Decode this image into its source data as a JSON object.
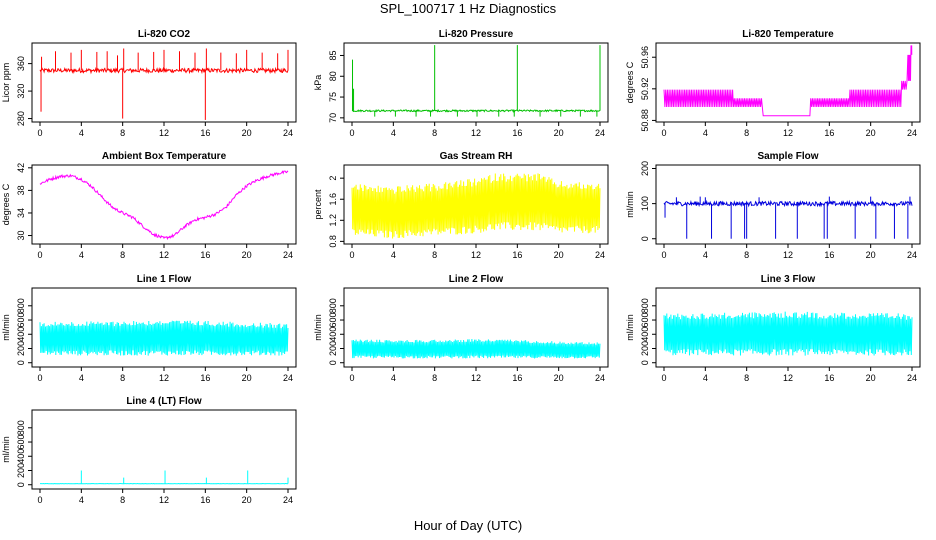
{
  "title": "SPL_100717  1 Hz Diagnostics",
  "x_axis_label": "Hour of Day (UTC)",
  "chart_data": [
    {
      "type": "line",
      "title": "Li-820 CO2",
      "ylabel": "Licor ppm",
      "color": "#ff0000",
      "xlim": [
        0,
        24
      ],
      "xticks": [
        0,
        4,
        8,
        12,
        16,
        20,
        24
      ],
      "ylim": [
        275,
        390
      ],
      "yticks": [
        280,
        320,
        360
      ],
      "baseline": 350,
      "noise": 3,
      "spikes": [
        {
          "x": 0.1,
          "y": 290
        },
        {
          "x": 0.15,
          "y": 370
        },
        {
          "x": 1.5,
          "y": 378
        },
        {
          "x": 3.0,
          "y": 376
        },
        {
          "x": 4.0,
          "y": 380
        },
        {
          "x": 5.5,
          "y": 377
        },
        {
          "x": 6.5,
          "y": 378
        },
        {
          "x": 7.5,
          "y": 372
        },
        {
          "x": 8.0,
          "y": 280
        },
        {
          "x": 8.1,
          "y": 382
        },
        {
          "x": 9.5,
          "y": 376
        },
        {
          "x": 11.0,
          "y": 377
        },
        {
          "x": 12.0,
          "y": 380
        },
        {
          "x": 13.5,
          "y": 378
        },
        {
          "x": 15.0,
          "y": 376
        },
        {
          "x": 16.0,
          "y": 278
        },
        {
          "x": 16.1,
          "y": 382
        },
        {
          "x": 17.5,
          "y": 376
        },
        {
          "x": 19.0,
          "y": 375
        },
        {
          "x": 20.0,
          "y": 380
        },
        {
          "x": 21.5,
          "y": 376
        },
        {
          "x": 23.0,
          "y": 375
        },
        {
          "x": 24.0,
          "y": 380
        }
      ]
    },
    {
      "type": "line",
      "title": "Li-820 Pressure",
      "ylabel": "kPa",
      "color": "#00c000",
      "xlim": [
        0,
        24
      ],
      "xticks": [
        0,
        4,
        8,
        12,
        16,
        20,
        24
      ],
      "ylim": [
        69,
        88
      ],
      "yticks": [
        70,
        75,
        80,
        85
      ],
      "baseline": 71.7,
      "noise": 0.2,
      "spikes": [
        {
          "x": 0.05,
          "y": 84
        },
        {
          "x": 0.15,
          "y": 77
        },
        {
          "x": 2.2,
          "y": 70.3
        },
        {
          "x": 4.2,
          "y": 70.3
        },
        {
          "x": 6.2,
          "y": 70.3
        },
        {
          "x": 7.6,
          "y": 70.3
        },
        {
          "x": 8.0,
          "y": 87.5
        },
        {
          "x": 10.2,
          "y": 70.3
        },
        {
          "x": 12.1,
          "y": 70.3
        },
        {
          "x": 14.2,
          "y": 70.3
        },
        {
          "x": 15.7,
          "y": 70.3
        },
        {
          "x": 16.0,
          "y": 87.5
        },
        {
          "x": 18.2,
          "y": 70.3
        },
        {
          "x": 20.2,
          "y": 70.3
        },
        {
          "x": 22.1,
          "y": 70.3
        },
        {
          "x": 23.7,
          "y": 70.3
        },
        {
          "x": 24.0,
          "y": 87.5
        }
      ]
    },
    {
      "type": "line",
      "title": "Li-820 Temperature",
      "ylabel": "degrees C",
      "color": "#ff00ff",
      "xlim": [
        0,
        24
      ],
      "xticks": [
        0,
        4,
        8,
        12,
        16,
        20,
        24
      ],
      "ylim": [
        50.878,
        50.978
      ],
      "yticks": [
        50.88,
        50.92,
        50.96
      ],
      "segments": [
        {
          "x0": 0.0,
          "x1": 6.8,
          "low": 50.897,
          "high": 50.919
        },
        {
          "x0": 6.8,
          "x1": 9.6,
          "low": 50.897,
          "high": 50.908
        },
        {
          "x0": 9.6,
          "x1": 14.2,
          "low": 50.886,
          "high": 50.886
        },
        {
          "x0": 14.2,
          "x1": 18.0,
          "low": 50.897,
          "high": 50.908
        },
        {
          "x0": 18.0,
          "x1": 23.0,
          "low": 50.897,
          "high": 50.919
        },
        {
          "x0": 23.0,
          "x1": 23.6,
          "low": 50.919,
          "high": 50.93
        },
        {
          "x0": 23.6,
          "x1": 23.9,
          "low": 50.93,
          "high": 50.963
        },
        {
          "x0": 23.9,
          "x1": 24.0,
          "low": 50.963,
          "high": 50.975
        }
      ]
    },
    {
      "type": "line",
      "title": "Ambient Box Temperature",
      "ylabel": "degrees C",
      "color": "#ff00ff",
      "xlim": [
        0,
        24
      ],
      "xticks": [
        0,
        4,
        8,
        12,
        16,
        20,
        24
      ],
      "ylim": [
        28.5,
        42.5
      ],
      "yticks": [
        30,
        34,
        38,
        42
      ],
      "noise": 0.25,
      "x": [
        0,
        1,
        2,
        3,
        4,
        5,
        6,
        7,
        8,
        9,
        10,
        11,
        12,
        13,
        14,
        15,
        16,
        17,
        18,
        19,
        20,
        21,
        22,
        23,
        24
      ],
      "y": [
        39.2,
        40.0,
        40.5,
        40.6,
        40.0,
        38.7,
        36.8,
        35.0,
        34.0,
        33.2,
        31.6,
        30.2,
        29.5,
        30.0,
        31.6,
        32.8,
        33.2,
        33.8,
        35.0,
        37.2,
        38.8,
        39.8,
        40.5,
        41.0,
        41.3
      ]
    },
    {
      "type": "line",
      "title": "Gas Stream RH",
      "ylabel": "percent",
      "color": "#ffff00",
      "xlim": [
        0,
        24
      ],
      "xticks": [
        0,
        4,
        8,
        12,
        16,
        20,
        24
      ],
      "ylim": [
        0.75,
        2.25
      ],
      "yticks": [
        0.8,
        1.2,
        1.6,
        2.0
      ],
      "band_x": [
        0,
        4,
        8,
        12,
        14,
        18,
        20,
        24
      ],
      "band_low": [
        0.9,
        0.85,
        0.9,
        0.95,
        1.0,
        1.0,
        0.95,
        0.95
      ],
      "band_high": [
        1.9,
        1.85,
        1.9,
        2.0,
        2.1,
        2.1,
        1.95,
        1.9
      ]
    },
    {
      "type": "line",
      "title": "Sample Flow",
      "ylabel": "ml/min",
      "color": "#0000dd",
      "xlim": [
        0,
        24
      ],
      "xticks": [
        0,
        4,
        8,
        12,
        16,
        20,
        24
      ],
      "ylim": [
        -15,
        210
      ],
      "yticks": [
        0,
        100,
        200
      ],
      "baseline": 100,
      "noise": 6,
      "spikes": [
        {
          "x": 0.1,
          "y": 60
        },
        {
          "x": 1.2,
          "y": 118
        },
        {
          "x": 2.2,
          "y": 0
        },
        {
          "x": 3.5,
          "y": 120
        },
        {
          "x": 4.0,
          "y": 118
        },
        {
          "x": 4.6,
          "y": 0
        },
        {
          "x": 6.5,
          "y": 0
        },
        {
          "x": 7.8,
          "y": 0
        },
        {
          "x": 8.0,
          "y": 0
        },
        {
          "x": 9.2,
          "y": 118
        },
        {
          "x": 10.8,
          "y": 0
        },
        {
          "x": 12.9,
          "y": 0
        },
        {
          "x": 15.5,
          "y": 0
        },
        {
          "x": 15.8,
          "y": 0
        },
        {
          "x": 16.0,
          "y": 120
        },
        {
          "x": 18.5,
          "y": 0
        },
        {
          "x": 20.0,
          "y": 120
        },
        {
          "x": 20.5,
          "y": 0
        },
        {
          "x": 22.3,
          "y": 0
        },
        {
          "x": 23.6,
          "y": 0
        },
        {
          "x": 23.8,
          "y": 120
        }
      ]
    },
    {
      "type": "line",
      "title": "Line 1 Flow",
      "ylabel": "ml/min",
      "color": "#00ffff",
      "xlim": [
        0,
        24
      ],
      "xticks": [
        0,
        4,
        8,
        12,
        16,
        20,
        24
      ],
      "ylim": [
        -60,
        1050
      ],
      "yticks": [
        0,
        200,
        400,
        600,
        800
      ],
      "band_x": [
        0,
        4,
        8,
        12,
        16,
        20,
        24
      ],
      "band_low": [
        100,
        100,
        100,
        100,
        100,
        100,
        100
      ],
      "band_high": [
        575,
        580,
        590,
        600,
        590,
        570,
        550
      ],
      "gaps": [
        4.0,
        8.2,
        12.3,
        16.2,
        20.2
      ],
      "gap_y": 350
    },
    {
      "type": "line",
      "title": "Line 2 Flow",
      "ylabel": "ml/min",
      "color": "#00ffff",
      "xlim": [
        0,
        24
      ],
      "xticks": [
        0,
        4,
        8,
        12,
        16,
        20,
        24
      ],
      "ylim": [
        -60,
        1050
      ],
      "yticks": [
        0,
        200,
        400,
        600,
        800
      ],
      "band_x": [
        0,
        4,
        8,
        12,
        16,
        20,
        24
      ],
      "band_low": [
        60,
        60,
        60,
        60,
        60,
        60,
        60
      ],
      "band_high": [
        330,
        320,
        325,
        335,
        325,
        300,
        285
      ],
      "gaps": [
        4.0,
        8.2,
        12.3,
        16.2,
        20.2
      ],
      "gap_y": 180
    },
    {
      "type": "line",
      "title": "Line 3 Flow",
      "ylabel": "ml/min",
      "color": "#00ffff",
      "xlim": [
        0,
        24
      ],
      "xticks": [
        0,
        4,
        8,
        12,
        16,
        20,
        24
      ],
      "ylim": [
        -60,
        1050
      ],
      "yticks": [
        0,
        200,
        400,
        600,
        800
      ],
      "band_x": [
        0,
        4,
        8,
        12,
        16,
        20,
        24
      ],
      "band_low": [
        100,
        100,
        100,
        100,
        100,
        100,
        100
      ],
      "band_high": [
        700,
        700,
        710,
        720,
        710,
        700,
        690
      ],
      "gaps": [
        4.0,
        8.2,
        12.3,
        16.2,
        20.2
      ],
      "gap_y": 400
    },
    {
      "type": "line",
      "title": "Line 4 (LT) Flow",
      "ylabel": "ml/min",
      "color": "#00ffff",
      "xlim": [
        0,
        24
      ],
      "xticks": [
        0,
        4,
        8,
        12,
        16,
        20,
        24
      ],
      "ylim": [
        -60,
        1050
      ],
      "yticks": [
        0,
        200,
        400,
        600,
        800
      ],
      "baseline": 15,
      "noise": 2,
      "spikes": [
        {
          "x": 4.0,
          "y": 200
        },
        {
          "x": 8.1,
          "y": 100
        },
        {
          "x": 12.1,
          "y": 200
        },
        {
          "x": 16.1,
          "y": 100
        },
        {
          "x": 20.1,
          "y": 200
        },
        {
          "x": 24.0,
          "y": 100
        }
      ]
    }
  ]
}
